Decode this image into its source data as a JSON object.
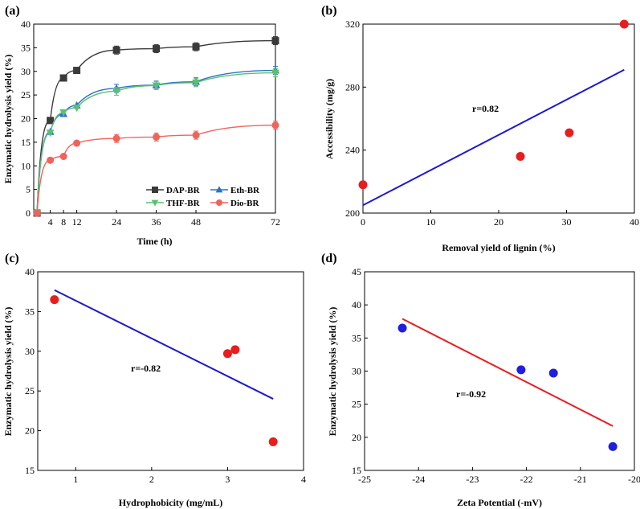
{
  "chart_data": [
    {
      "panel": "(a)",
      "type": "line",
      "xlabel": "Time (h)",
      "ylabel": "Enzymatic hydrolysis yield (%)",
      "xlim": [
        -1,
        72
      ],
      "ylim": [
        0,
        40
      ],
      "xticks": [
        4,
        8,
        12,
        24,
        36,
        48,
        72
      ],
      "xtick_labels": [
        "4",
        "8",
        "12",
        "24",
        "36",
        "48",
        "72"
      ],
      "yticks": [
        0,
        5,
        10,
        15,
        20,
        25,
        30,
        35,
        40
      ],
      "ytick_labels": [
        "0",
        "5",
        "10",
        "15",
        "20",
        "25",
        "30",
        "35",
        "40"
      ],
      "legend_position": "bottom-right",
      "x": [
        0,
        4,
        8,
        12,
        24,
        36,
        48,
        72
      ],
      "series": [
        {
          "name": "DAP-BR",
          "marker": "square",
          "color": "#3a3a3a",
          "values": [
            0,
            19.6,
            28.6,
            30.2,
            34.5,
            34.8,
            35.2,
            36.5
          ]
        },
        {
          "name": "Eth-BR",
          "marker": "triangle-up",
          "color": "#2a72c9",
          "values": [
            0,
            17.2,
            21.0,
            22.8,
            26.4,
            27.1,
            27.8,
            30.2
          ]
        },
        {
          "name": "THF-BR",
          "marker": "triangle-down",
          "color": "#5bbf73",
          "values": [
            0,
            17.0,
            21.3,
            22.3,
            25.8,
            27.0,
            27.6,
            29.7
          ]
        },
        {
          "name": "Dio-BR",
          "marker": "circle",
          "color": "#f0635a",
          "values": [
            0,
            11.2,
            12.0,
            14.8,
            15.8,
            16.1,
            16.5,
            18.6
          ]
        }
      ]
    },
    {
      "panel": "(b)",
      "type": "scatter",
      "xlabel": "Removal yield of lignin (%)",
      "ylabel": "Accessibility (mg/g)",
      "xlim": [
        0,
        40
      ],
      "ylim": [
        200,
        320
      ],
      "xticks": [
        0,
        10,
        20,
        30,
        40
      ],
      "xtick_labels": [
        "0",
        "10",
        "20",
        "30",
        "40"
      ],
      "yticks": [
        200,
        240,
        280,
        320
      ],
      "ytick_labels": [
        "200",
        "240",
        "280",
        "320"
      ],
      "points": {
        "x": [
          0,
          23.2,
          30.4,
          38.5
        ],
        "y": [
          218,
          236,
          251,
          320
        ]
      },
      "point_color": "#e81e1e",
      "fit_line": {
        "x": [
          0,
          38.5
        ],
        "y": [
          205,
          291
        ],
        "color": "#1a1acf"
      },
      "annotation": "r=0.82"
    },
    {
      "panel": "(c)",
      "type": "scatter",
      "xlabel": "Hydrophobicity (mg/mL)",
      "ylabel": "Enzymatic hydrolysis yield (%)",
      "xlim": [
        0.5,
        4
      ],
      "ylim": [
        15,
        40
      ],
      "xticks": [
        1,
        2,
        3,
        4
      ],
      "xtick_labels": [
        "1",
        "2",
        "3",
        "4"
      ],
      "yticks": [
        15,
        20,
        25,
        30,
        35,
        40
      ],
      "ytick_labels": [
        "15",
        "20",
        "25",
        "30",
        "35",
        "40"
      ],
      "points": {
        "x": [
          0.72,
          3.0,
          3.1,
          3.6
        ],
        "y": [
          36.5,
          29.7,
          30.2,
          18.6
        ]
      },
      "point_color": "#e81e1e",
      "fit_line": {
        "x": [
          0.72,
          3.6
        ],
        "y": [
          37.7,
          24.0
        ],
        "color": "#1a1acf"
      },
      "annotation": "r=-0.82"
    },
    {
      "panel": "(d)",
      "type": "scatter",
      "xlabel": "Zeta Potential (-mV)",
      "ylabel": "Enzymatic hydrolysis  yield (%)",
      "xlim": [
        -25,
        -20
      ],
      "ylim": [
        15,
        45
      ],
      "xticks": [
        -25,
        -24,
        -23,
        -22,
        -21,
        -20
      ],
      "xtick_labels": [
        "-25",
        "-24",
        "-23",
        "-22",
        "-21",
        "-20"
      ],
      "yticks": [
        15,
        20,
        25,
        30,
        35,
        40,
        45
      ],
      "ytick_labels": [
        "15",
        "20",
        "25",
        "30",
        "35",
        "40",
        "45"
      ],
      "points": {
        "x": [
          -24.3,
          -22.1,
          -21.5,
          -20.4
        ],
        "y": [
          36.5,
          30.2,
          29.7,
          18.6
        ]
      },
      "point_color": "#1f1fe0",
      "fit_line": {
        "x": [
          -24.3,
          -20.4
        ],
        "y": [
          37.9,
          21.7
        ],
        "color": "#e81e1e"
      },
      "annotation": "r=-0.92"
    }
  ]
}
